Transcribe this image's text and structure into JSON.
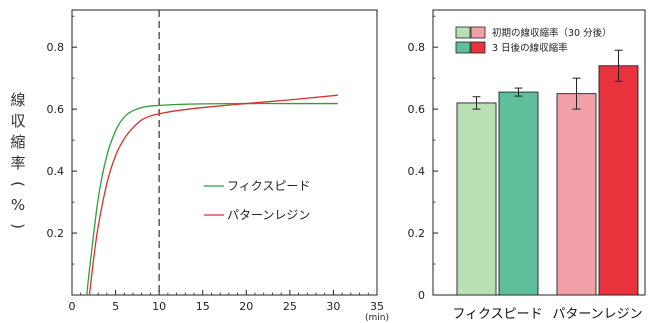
{
  "colors": {
    "fix": "#2e9e3e",
    "pattern": "#d63030",
    "bar_fix_initial": "#b9dfb4",
    "bar_fix_3day": "#5fbf9a",
    "bar_pat_initial": "#f0a0a6",
    "bar_pat_3day": "#e8323c"
  },
  "y_axis_label_chars": [
    "線",
    "収",
    "縮",
    "率",
    "(",
    "%",
    ")"
  ],
  "chart_data": [
    {
      "type": "line",
      "xlabel": "",
      "x_unit": "(min)",
      "ylabel": "線収縮率(%)",
      "xlim": [
        0,
        35
      ],
      "ylim": [
        0,
        0.92
      ],
      "x_ticks": [
        "0",
        "5",
        "10",
        "15",
        "20",
        "25",
        "30",
        "35"
      ],
      "y_ticks": [
        "0.2",
        "0.4",
        "0.6",
        "0.8"
      ],
      "marker_line_x": 10,
      "series": [
        {
          "name": "フィクスピード",
          "color": "#2e9e3e",
          "x": [
            1.7,
            2,
            3,
            4,
            5,
            6,
            7,
            8,
            9,
            10,
            12,
            15,
            20,
            25,
            30.5
          ],
          "y": [
            0.0,
            0.08,
            0.31,
            0.45,
            0.53,
            0.575,
            0.595,
            0.605,
            0.61,
            0.612,
            0.615,
            0.617,
            0.618,
            0.618,
            0.618
          ]
        },
        {
          "name": "パターンレジン",
          "color": "#d63030",
          "x": [
            2.0,
            2.5,
            3,
            4,
            5,
            6,
            7,
            8,
            9,
            10,
            12,
            15,
            20,
            25,
            30.5
          ],
          "y": [
            0.0,
            0.12,
            0.22,
            0.36,
            0.45,
            0.505,
            0.54,
            0.565,
            0.578,
            0.585,
            0.595,
            0.605,
            0.618,
            0.63,
            0.645
          ]
        }
      ],
      "legend": [
        "フィクスピード",
        "パターンレジン"
      ]
    },
    {
      "type": "bar",
      "categories": [
        "フィクスピード",
        "パターンレジン"
      ],
      "ylim": [
        0,
        0.92
      ],
      "y_ticks": [
        "0",
        "0.2",
        "0.4",
        "0.6",
        "0.8"
      ],
      "series": [
        {
          "name": "初期の線収縮率（30 分後）",
          "values": [
            0.62,
            0.65
          ],
          "errors": [
            0.02,
            0.05
          ]
        },
        {
          "name": "3 日後の線収縮率",
          "values": [
            0.655,
            0.74
          ],
          "errors": [
            0.013,
            0.05
          ]
        }
      ]
    }
  ]
}
